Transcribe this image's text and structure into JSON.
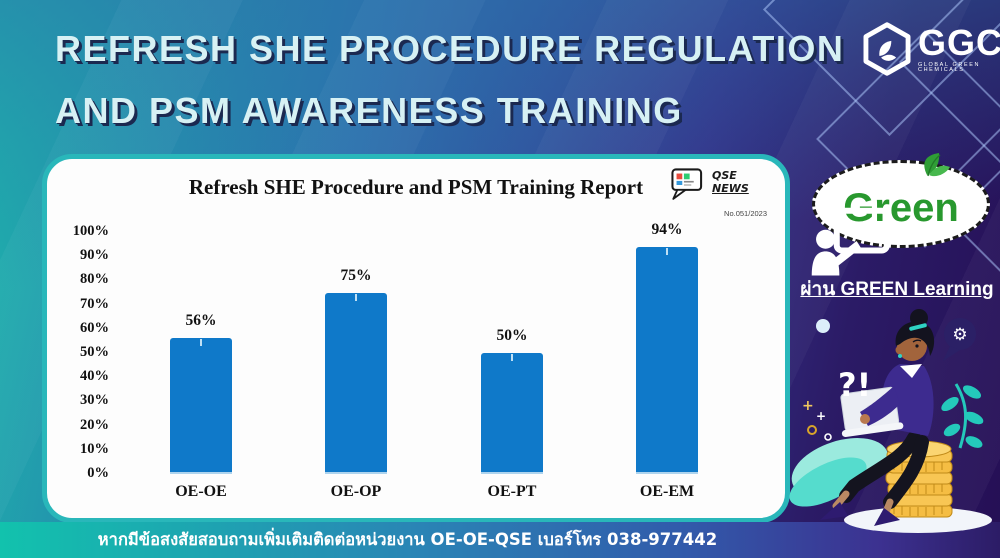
{
  "slide": {
    "title_line1": "REFRESH SHE PROCEDURE REGULATION",
    "title_line2": "AND PSM AWARENESS TRAINING",
    "footer": "หากมีข้อสงสัยสอบถามเพิ่มเติมติดต่อหน่วยงาน OE-OE-QSE เบอร์โทร 038-977442"
  },
  "logo": {
    "name": "GGC",
    "tagline": "GLOBAL GREEN CHEMICALS"
  },
  "badge": {
    "line1": "QSE",
    "line2": "NEWS",
    "issue": "No.051/2023"
  },
  "chart_data": {
    "type": "bar",
    "title": "Refresh SHE Procedure and PSM Training Report",
    "categories": [
      "OE-OE",
      "OE-OP",
      "OE-PT",
      "OE-EM"
    ],
    "values": [
      56,
      75,
      50,
      94
    ],
    "value_labels": [
      "56%",
      "75%",
      "50%",
      "94%"
    ],
    "y_ticks": [
      "100%",
      "90%",
      "80%",
      "70%",
      "60%",
      "50%",
      "40%",
      "30%",
      "20%",
      "10%",
      "0%"
    ],
    "ylim": [
      0,
      100
    ],
    "xlabel": "",
    "ylabel": "",
    "grid": false,
    "legend": false,
    "bar_color": "#0f79c9"
  },
  "right_panel": {
    "green_label": "Green",
    "learning_caption": "ผ่าน GREEN Learning",
    "question_exclamation": "?!"
  },
  "colors": {
    "bg_teal": "#1db6ac",
    "bg_blue": "#2b72ae",
    "bg_purple": "#250f55",
    "card_border": "#29b7ba",
    "bar_blue": "#0f79c9",
    "headline_text": "#d7f1f4",
    "green_brand": "#28982e",
    "coin_gold": "#f5bd43"
  }
}
